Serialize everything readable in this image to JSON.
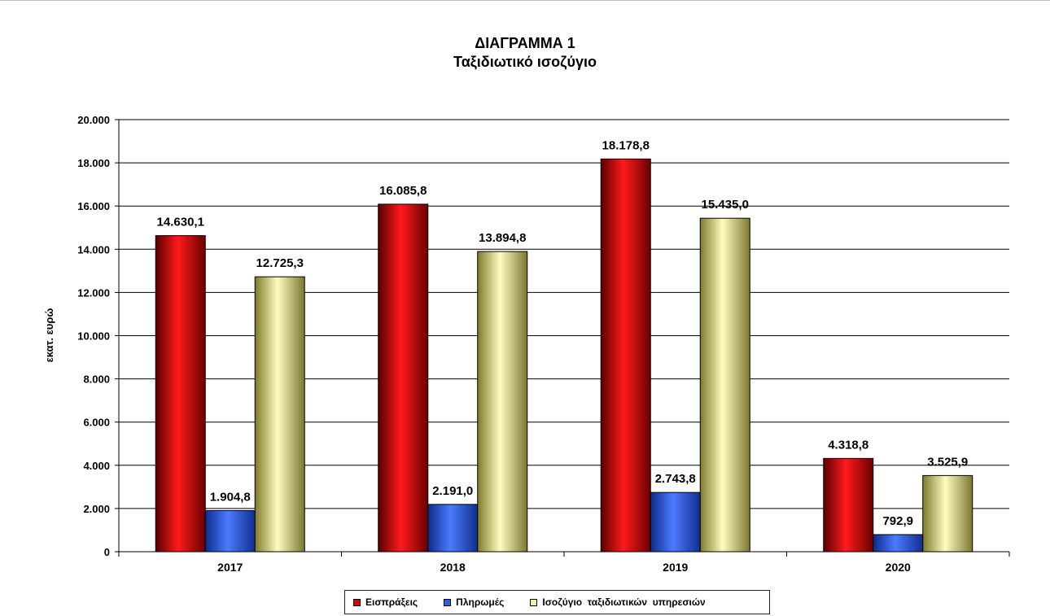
{
  "chart_data": {
    "type": "bar",
    "title": "ΔΙΑΓΡΑΜΜΑ 1",
    "subtitle": "Ταξιδιωτικό ισοζύγιο",
    "ylabel": "εκατ. ευρώ",
    "xlabel": "",
    "ylim": [
      0,
      20000
    ],
    "yticks": [
      0,
      2000,
      4000,
      6000,
      8000,
      10000,
      12000,
      14000,
      16000,
      18000,
      20000
    ],
    "ytick_labels": [
      "0",
      "2.000",
      "4.000",
      "6.000",
      "8.000",
      "10.000",
      "12.000",
      "14.000",
      "16.000",
      "18.000",
      "20.000"
    ],
    "grid": true,
    "legend_position": "bottom",
    "categories": [
      "2017",
      "2018",
      "2019",
      "2020"
    ],
    "series": [
      {
        "name": "Εισπράξεις",
        "color": "#e00000",
        "values": [
          14630.1,
          16085.8,
          18178.8,
          4318.8
        ],
        "labels": [
          "14.630,1",
          "16.085,8",
          "18.178,8",
          "4.318,8"
        ]
      },
      {
        "name": "Πληρωμές",
        "color": "#2f5fe6",
        "values": [
          1904.8,
          2191.0,
          2743.8,
          792.9
        ],
        "labels": [
          "1.904,8",
          "2.191,0",
          "2.743,8",
          "792,9"
        ]
      },
      {
        "name": "Ισοζύγιο  ταξιδιωτικών  υπηρεσιών",
        "color": "#f2f099",
        "values": [
          12725.3,
          13894.8,
          15435.0,
          3525.9
        ],
        "labels": [
          "12.725,3",
          "13.894,8",
          "15.435,0",
          "3.525,9"
        ]
      }
    ]
  }
}
